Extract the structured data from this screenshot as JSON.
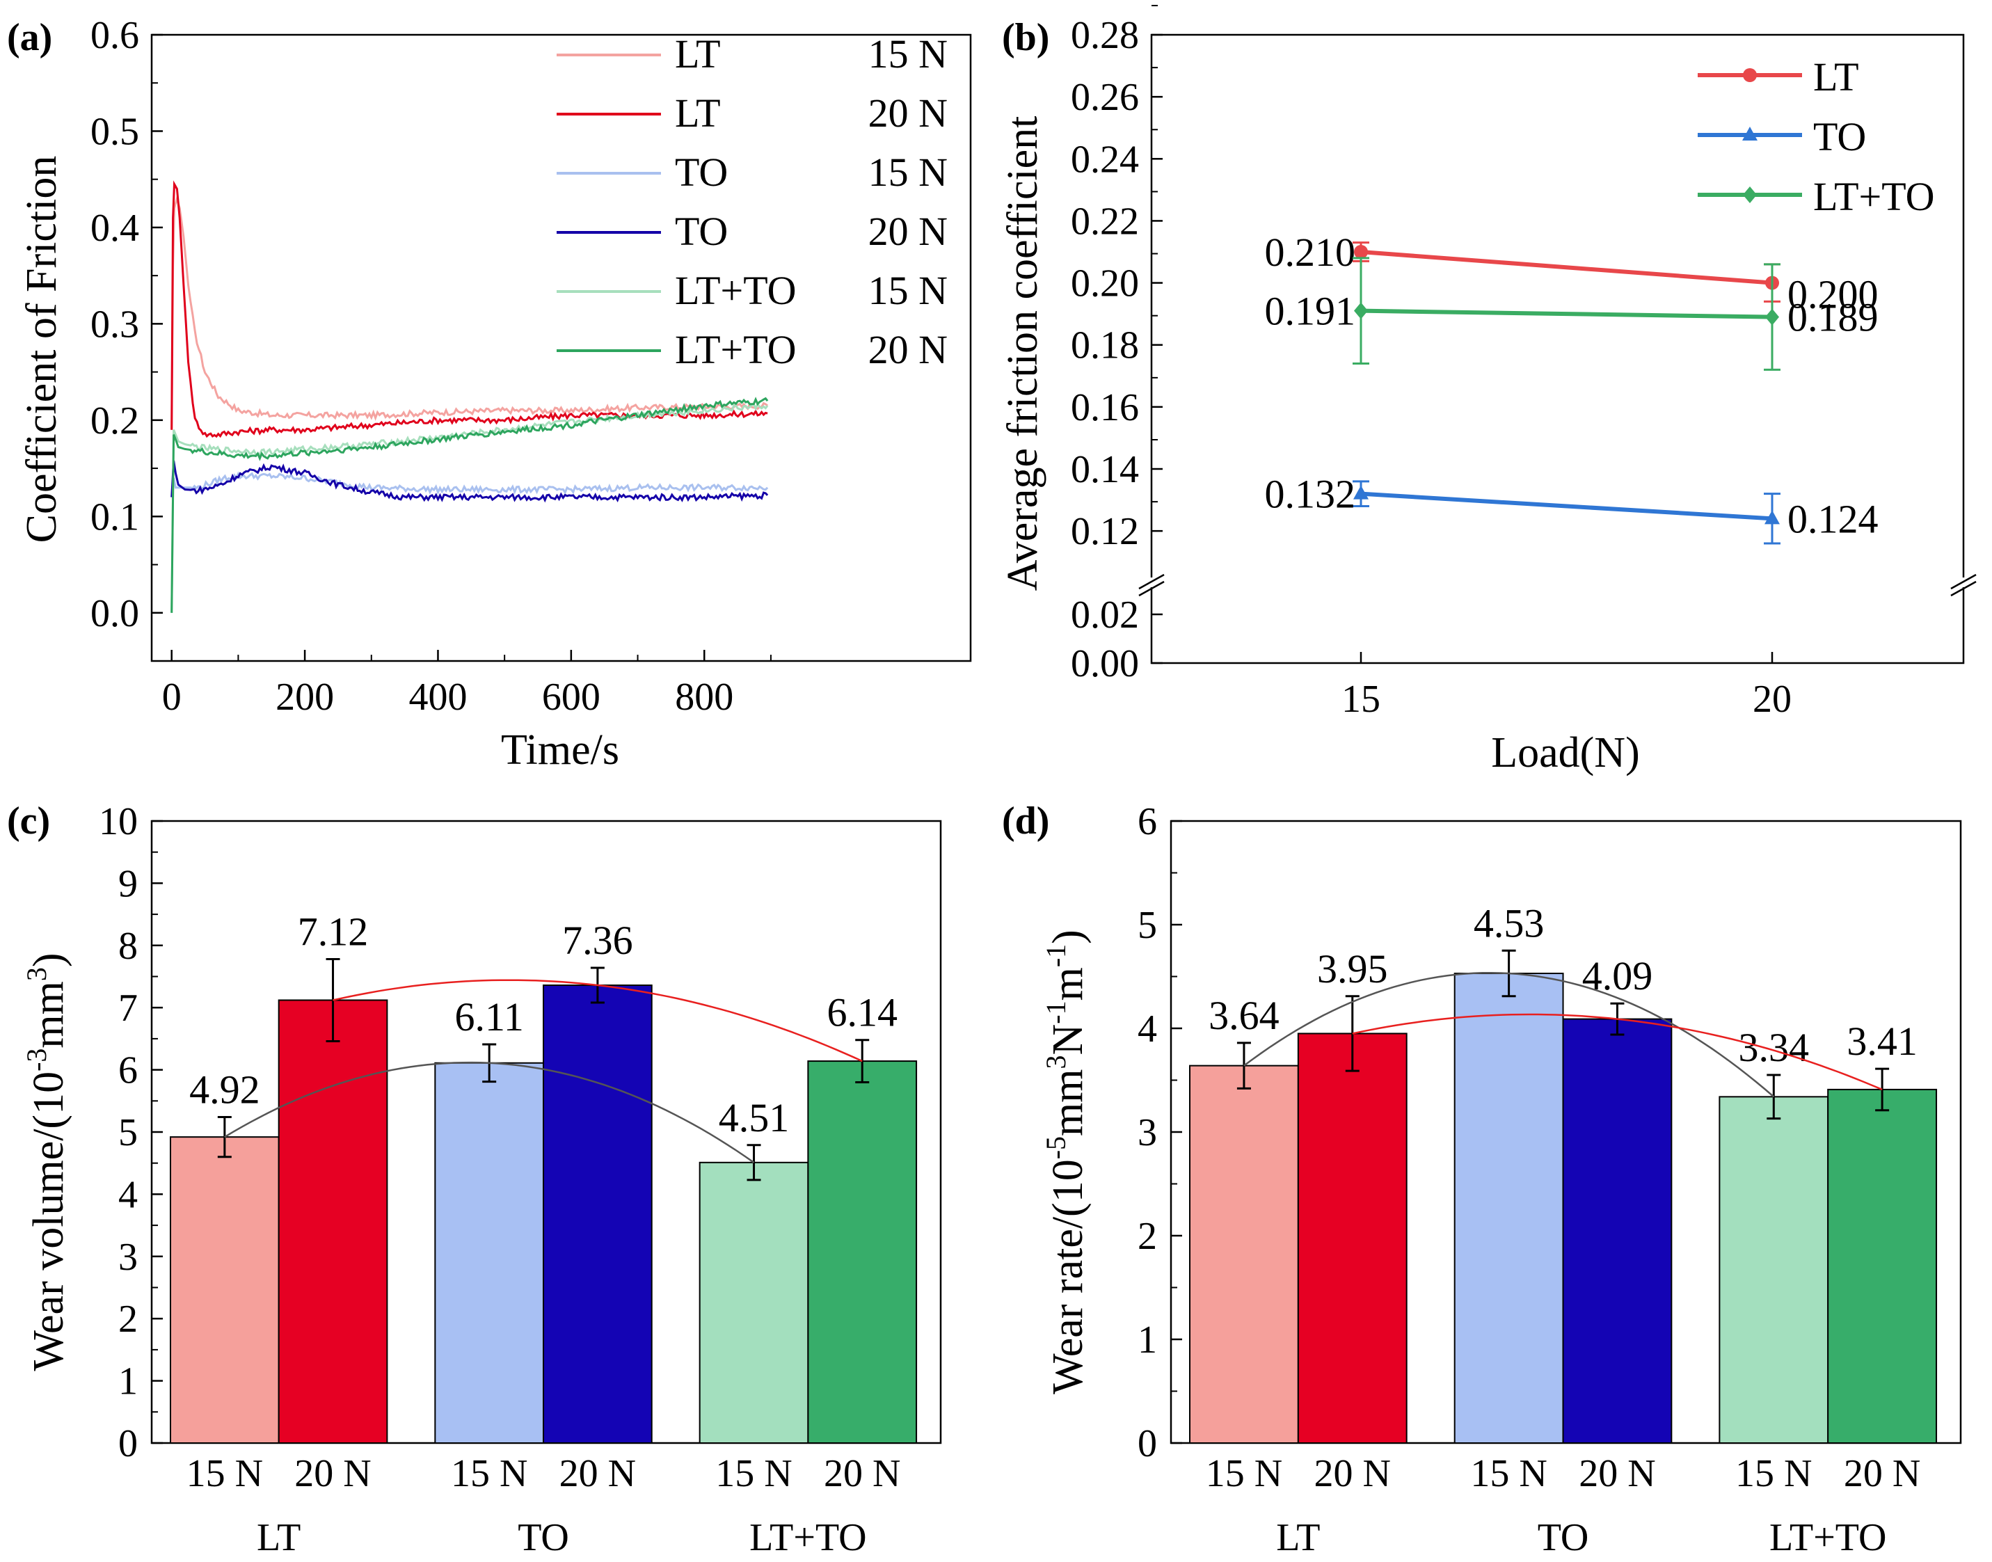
{
  "chart_data": [
    {
      "id": "a",
      "type": "line",
      "panel_label": "(a)",
      "xlabel": "Time/s",
      "ylabel": "Coefficient of Friction",
      "xlim": [
        -30,
        1200
      ],
      "ylim": [
        -0.05,
        0.6
      ],
      "xticks": [
        "0",
        "200",
        "400",
        "600",
        "800"
      ],
      "yticks": [
        "0.0",
        "0.1",
        "0.2",
        "0.3",
        "0.4",
        "0.5",
        "0.6"
      ],
      "series": [
        {
          "name": "LT",
          "load": "15 N",
          "color": "#f4a3a0",
          "x": [
            0,
            2,
            4,
            8,
            12,
            18,
            25,
            35,
            50,
            70,
            100,
            150,
            200,
            300,
            400,
            500,
            600,
            700,
            800,
            895
          ],
          "y": [
            0.19,
            0.36,
            0.42,
            0.43,
            0.42,
            0.39,
            0.34,
            0.29,
            0.25,
            0.225,
            0.21,
            0.205,
            0.205,
            0.205,
            0.208,
            0.21,
            0.21,
            0.213,
            0.214,
            0.215
          ]
        },
        {
          "name": "LT",
          "load": "20 N",
          "color": "#e0001b",
          "x": [
            0,
            2,
            4,
            8,
            12,
            18,
            25,
            35,
            50,
            70,
            100,
            150,
            200,
            300,
            400,
            500,
            600,
            700,
            800,
            895
          ],
          "y": [
            0.19,
            0.41,
            0.445,
            0.44,
            0.41,
            0.34,
            0.26,
            0.2,
            0.185,
            0.185,
            0.188,
            0.19,
            0.19,
            0.195,
            0.2,
            0.2,
            0.205,
            0.205,
            0.205,
            0.207
          ]
        },
        {
          "name": "TO",
          "load": "15 N",
          "color": "#a9c0ef",
          "x": [
            0,
            3,
            6,
            10,
            20,
            40,
            60,
            80,
            100,
            150,
            200,
            250,
            300,
            400,
            500,
            600,
            700,
            800,
            895
          ],
          "y": [
            0.12,
            0.14,
            0.13,
            0.13,
            0.13,
            0.13,
            0.135,
            0.14,
            0.142,
            0.142,
            0.14,
            0.135,
            0.13,
            0.128,
            0.128,
            0.128,
            0.13,
            0.13,
            0.13
          ]
        },
        {
          "name": "TO",
          "load": "20 N",
          "color": "#1400a8",
          "x": [
            0,
            3,
            6,
            10,
            20,
            40,
            60,
            80,
            100,
            150,
            200,
            250,
            300,
            350,
            400,
            500,
            600,
            700,
            800,
            895
          ],
          "y": [
            0.12,
            0.158,
            0.145,
            0.133,
            0.128,
            0.127,
            0.13,
            0.135,
            0.143,
            0.152,
            0.145,
            0.133,
            0.125,
            0.12,
            0.12,
            0.12,
            0.12,
            0.12,
            0.12,
            0.122
          ]
        },
        {
          "name": "LT+TO",
          "load": "15 N",
          "color": "#a7dfbd",
          "x": [
            0,
            3,
            6,
            10,
            20,
            40,
            60,
            100,
            150,
            200,
            300,
            400,
            500,
            600,
            700,
            800,
            895
          ],
          "y": [
            0.0,
            0.19,
            0.185,
            0.178,
            0.175,
            0.172,
            0.17,
            0.168,
            0.167,
            0.17,
            0.175,
            0.182,
            0.19,
            0.198,
            0.205,
            0.21,
            0.215
          ]
        },
        {
          "name": "LT+TO",
          "load": "20 N",
          "color": "#2da55e",
          "x": [
            0,
            3,
            6,
            10,
            20,
            40,
            60,
            100,
            150,
            200,
            300,
            400,
            500,
            600,
            700,
            800,
            895
          ],
          "y": [
            0.0,
            0.185,
            0.18,
            0.172,
            0.17,
            0.168,
            0.166,
            0.163,
            0.163,
            0.166,
            0.172,
            0.18,
            0.188,
            0.195,
            0.205,
            0.215,
            0.22
          ]
        }
      ]
    },
    {
      "id": "b",
      "type": "line",
      "panel_label": "(b)",
      "xlabel": "Load(N)",
      "ylabel": "Average friction coefficient",
      "categories": [
        "15",
        "20"
      ],
      "yticks_upper": [
        "0.12",
        "0.14",
        "0.16",
        "0.18",
        "0.20",
        "0.22",
        "0.24",
        "0.26",
        "0.28"
      ],
      "yticks_lower": [
        "0.00",
        "0.02"
      ],
      "ylim_upper": [
        0.105,
        0.28
      ],
      "ylim_lower": [
        0,
        0.03
      ],
      "series": [
        {
          "name": "LT",
          "color": "#e8474a",
          "marker": "circle",
          "values": [
            0.21,
            0.2
          ],
          "errors": [
            0.003,
            0.006
          ],
          "labels": [
            "0.210",
            "0.200"
          ]
        },
        {
          "name": "TO",
          "color": "#2f76d4",
          "marker": "triangle",
          "values": [
            0.132,
            0.124
          ],
          "errors": [
            0.004,
            0.008
          ],
          "labels": [
            "0.132",
            "0.124"
          ]
        },
        {
          "name": "LT+TO",
          "color": "#3aac62",
          "marker": "diamond",
          "values": [
            0.191,
            0.189
          ],
          "errors": [
            0.017,
            0.017
          ],
          "labels": [
            "0.191",
            "0.189"
          ]
        }
      ]
    },
    {
      "id": "c",
      "type": "bar",
      "panel_label": "(c)",
      "ylabel_main": "Wear volume/(10",
      "ylabel_sup1": "-3",
      "ylabel_mid": "mm",
      "ylabel_sup2": "3",
      "ylabel_end": ")",
      "ylim": [
        0,
        10
      ],
      "yticks": [
        "0",
        "1",
        "2",
        "3",
        "4",
        "5",
        "6",
        "7",
        "8",
        "9",
        "10"
      ],
      "groups": [
        "LT",
        "TO",
        "LT+TO"
      ],
      "loads": [
        "15 N",
        "20 N"
      ],
      "bars": [
        {
          "group": "LT",
          "load": "15 N",
          "value": 4.92,
          "label": "4.92",
          "error": 0.32,
          "color": "#f5a09b"
        },
        {
          "group": "LT",
          "load": "20 N",
          "value": 7.12,
          "label": "7.12",
          "error": 0.66,
          "color": "#e60023"
        },
        {
          "group": "TO",
          "load": "15 N",
          "value": 6.11,
          "label": "6.11",
          "error": 0.3,
          "color": "#a8c0f3"
        },
        {
          "group": "TO",
          "load": "20 N",
          "value": 7.36,
          "label": "7.36",
          "error": 0.28,
          "color": "#1404b4"
        },
        {
          "group": "LT+TO",
          "load": "15 N",
          "value": 4.51,
          "label": "4.51",
          "error": 0.28,
          "color": "#a3dfbe"
        },
        {
          "group": "LT+TO",
          "load": "20 N",
          "value": 6.14,
          "label": "6.14",
          "error": 0.34,
          "color": "#37ad6a"
        }
      ]
    },
    {
      "id": "d",
      "type": "bar",
      "panel_label": "(d)",
      "ylabel_main": "Wear rate/(10",
      "ylabel_sup1": "-5",
      "ylabel_mid": "mm",
      "ylabel_sup2": "3",
      "ylabel_mid2": "N",
      "ylabel_sup3": "-1",
      "ylabel_mid3": "m",
      "ylabel_sup4": "-1",
      "ylabel_end": ")",
      "ylim": [
        0,
        6
      ],
      "yticks": [
        "0",
        "1",
        "2",
        "3",
        "4",
        "5",
        "6"
      ],
      "groups": [
        "LT",
        "TO",
        "LT+TO"
      ],
      "loads": [
        "15 N",
        "20 N"
      ],
      "bars": [
        {
          "group": "LT",
          "load": "15 N",
          "value": 3.64,
          "label": "3.64",
          "error": 0.22,
          "color": "#f5a09b"
        },
        {
          "group": "LT",
          "load": "20 N",
          "value": 3.95,
          "label": "3.95",
          "error": 0.36,
          "color": "#e60023"
        },
        {
          "group": "TO",
          "load": "15 N",
          "value": 4.53,
          "label": "4.53",
          "error": 0.22,
          "color": "#a8c0f3"
        },
        {
          "group": "TO",
          "load": "20 N",
          "value": 4.09,
          "label": "4.09",
          "error": 0.15,
          "color": "#1404b4"
        },
        {
          "group": "LT+TO",
          "load": "15 N",
          "value": 3.34,
          "label": "3.34",
          "error": 0.21,
          "color": "#a3dfbe"
        },
        {
          "group": "LT+TO",
          "load": "20 N",
          "value": 3.41,
          "label": "3.41",
          "error": 0.2,
          "color": "#37ad6a"
        }
      ]
    }
  ]
}
